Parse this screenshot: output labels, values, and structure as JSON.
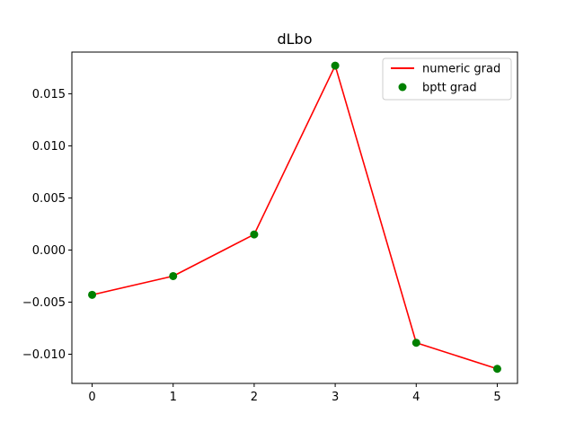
{
  "chart_data": {
    "type": "line",
    "title": "dLbo",
    "xlabel": "",
    "ylabel": "",
    "x": [
      0,
      1,
      2,
      3,
      4,
      5
    ],
    "xlim": [
      -0.25,
      5.25
    ],
    "ylim": [
      -0.0128,
      0.019
    ],
    "xticks": [
      0,
      1,
      2,
      3,
      4,
      5
    ],
    "xtick_labels": [
      "0",
      "1",
      "2",
      "3",
      "4",
      "5"
    ],
    "yticks": [
      0.015,
      0.01,
      0.005,
      0.0,
      -0.005,
      -0.01
    ],
    "ytick_labels": [
      "0.015",
      "0.010",
      "0.005",
      "0.000",
      "−0.005",
      "−0.010"
    ],
    "grid": false,
    "legend_position": "top-right",
    "series": [
      {
        "name": "numeric grad",
        "style": "line",
        "color": "#ff0000",
        "values": [
          -0.0043,
          -0.0025,
          0.0015,
          0.0177,
          -0.0089,
          -0.0114
        ]
      },
      {
        "name": "bptt grad",
        "style": "markers",
        "color": "#008000",
        "values": [
          -0.0043,
          -0.0025,
          0.0015,
          0.0177,
          -0.0089,
          -0.0114
        ]
      }
    ]
  }
}
